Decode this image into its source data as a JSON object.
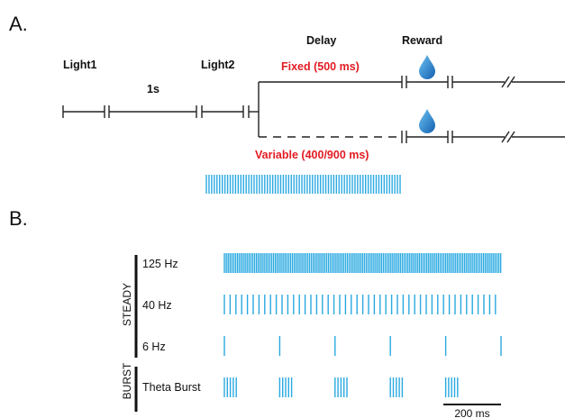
{
  "panel_a": {
    "label": "A.",
    "light1": "Light1",
    "interval": "1s",
    "light2": "Light2",
    "delay": "Delay",
    "reward": "Reward",
    "fixed": "Fixed (500 ms)",
    "variable": "Variable (400/900 ms)",
    "stim_pulse_count": 74
  },
  "panel_b": {
    "label": "B.",
    "steady_label": "STEADY",
    "burst_label": "BURST",
    "rows": [
      {
        "label": "125 Hz"
      },
      {
        "label": "40 Hz"
      },
      {
        "label": "6 Hz"
      },
      {
        "label": "Theta Burst"
      }
    ],
    "scalebar": "200 ms"
  },
  "colors": {
    "pulse": "#29a9e1",
    "highlight": "#e31b23",
    "line": "#222222",
    "drop": "#1e7fcf"
  }
}
